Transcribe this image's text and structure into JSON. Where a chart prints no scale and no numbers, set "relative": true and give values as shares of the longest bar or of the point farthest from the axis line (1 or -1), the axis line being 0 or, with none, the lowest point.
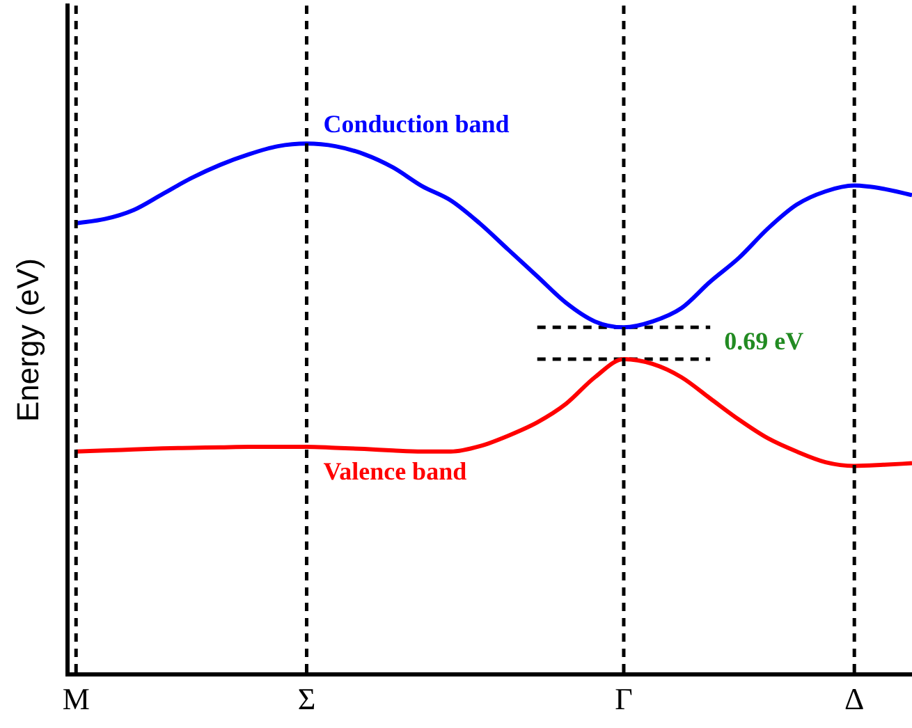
{
  "chart_data": {
    "type": "line",
    "ylabel": "Energy (eV)",
    "relative": true,
    "grid": false,
    "legend": false,
    "tick_labels": "x",
    "marker": "none",
    "categories": [
      "M",
      null,
      null,
      null,
      null,
      null,
      null,
      null,
      "Σ",
      null,
      null,
      null,
      null,
      null,
      null,
      null,
      null,
      null,
      null,
      "Γ",
      null,
      null,
      null,
      null,
      null,
      null,
      null,
      "Δ",
      null,
      null
    ],
    "series": [
      {
        "name": "Conduction band",
        "color": "#0000ff",
        "values": [
          0.85,
          0.858,
          0.875,
          0.905,
          0.935,
          0.96,
          0.98,
          0.995,
          1,
          0.995,
          0.98,
          0.955,
          0.92,
          0.893,
          0.85,
          0.8,
          0.75,
          0.7,
          0.665,
          0.654,
          0.665,
          0.69,
          0.74,
          0.785,
          0.84,
          0.885,
          0.91,
          0.921,
          0.915,
          0.903
        ]
      },
      {
        "name": "Valence band",
        "color": "#ff0000",
        "values": [
          0.42,
          0.422,
          0.424,
          0.426,
          0.427,
          0.428,
          0.429,
          0.429,
          0.429,
          0.427,
          0.425,
          0.422,
          0.42,
          0.42,
          0.43,
          0.45,
          0.475,
          0.51,
          0.56,
          0.594,
          0.585,
          0.56,
          0.52,
          0.48,
          0.445,
          0.42,
          0.4,
          0.393,
          0.395,
          0.398
        ]
      },
      {
        "color": "#000000",
        "line_style": "dashed",
        "values": [
          null,
          null,
          null,
          null,
          null,
          null,
          null,
          null,
          null,
          null,
          null,
          null,
          null,
          null,
          null,
          null,
          0.654,
          0.654,
          0.654,
          0.654,
          0.654,
          0.654,
          0.654,
          null,
          null,
          null,
          null,
          null,
          null,
          null
        ]
      },
      {
        "color": "#000000",
        "line_style": "dashed",
        "values": [
          null,
          null,
          null,
          null,
          null,
          null,
          null,
          null,
          null,
          null,
          null,
          null,
          null,
          null,
          null,
          null,
          0.594,
          0.594,
          0.594,
          0.594,
          0.594,
          0.594,
          0.594,
          null,
          null,
          null,
          null,
          null,
          null,
          null
        ]
      }
    ],
    "ref_lines": [
      {
        "axis": "x",
        "value": "M",
        "color": "#000000",
        "line_style": "dashed"
      },
      {
        "axis": "x",
        "value": "Σ",
        "color": "#000000",
        "line_style": "dashed"
      },
      {
        "axis": "x",
        "value": "Γ",
        "color": "#000000",
        "line_style": "dashed"
      },
      {
        "axis": "x",
        "value": "Δ",
        "color": "#000000",
        "line_style": "dashed"
      }
    ],
    "annotations": [
      "0.69 eV"
    ]
  }
}
